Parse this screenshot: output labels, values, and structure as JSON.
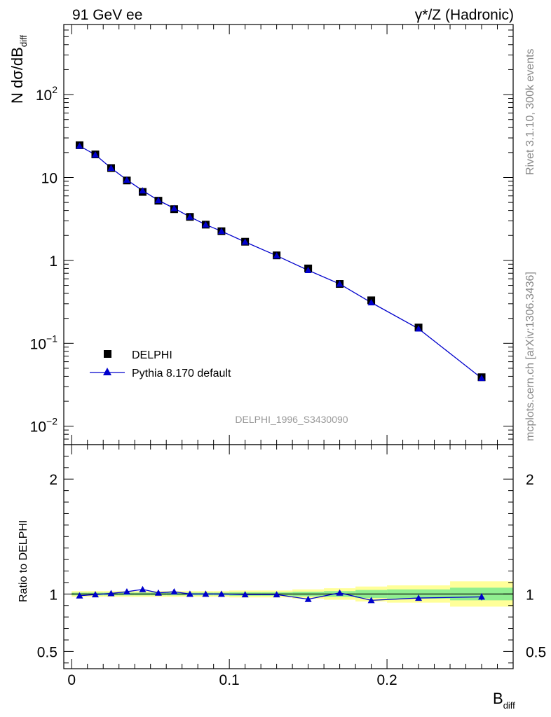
{
  "colors": {
    "data": "#000000",
    "mc": "#0000cc",
    "band_green": "#90ee90",
    "band_yellow": "#ffff99",
    "side_text": "#888888"
  },
  "header": {
    "left": "91 GeV ee",
    "right": "γ*/Z (Hadronic)"
  },
  "side_texts": {
    "rivet": "Rivet 3.1.10,  300k events",
    "mcplots": "mcplots.cern.ch [arXiv:1306.3436]"
  },
  "chart_data": [
    {
      "type": "scatter",
      "id": "main",
      "title": "",
      "xlabel": "B",
      "xlabel_sub": "diff",
      "ylabel_main": "N dσ/dB",
      "ylabel_sub": "diff",
      "yscale": "log",
      "ylim": [
        0.006,
        700
      ],
      "xlim": [
        -0.005,
        0.28
      ],
      "watermark": "DELPHI_1996_S3430090",
      "y_ticks": [
        {
          "v": 0.01,
          "base": "10",
          "exp": "−2"
        },
        {
          "v": 0.1,
          "base": "10",
          "exp": "−1"
        },
        {
          "v": 1,
          "base": "1",
          "exp": ""
        },
        {
          "v": 10,
          "base": "10",
          "exp": ""
        },
        {
          "v": 100,
          "base": "10",
          "exp": "2"
        }
      ],
      "legend": {
        "position": "bottom-left",
        "entries": [
          "DELPHI",
          "Pythia 8.170 default"
        ]
      },
      "series": [
        {
          "name": "DELPHI",
          "marker": "square",
          "x": [
            0.005,
            0.015,
            0.025,
            0.035,
            0.045,
            0.055,
            0.065,
            0.075,
            0.085,
            0.095,
            0.11,
            0.13,
            0.15,
            0.17,
            0.19,
            0.22,
            0.26
          ],
          "values": [
            24.5,
            19.0,
            13.0,
            9.2,
            6.7,
            5.25,
            4.15,
            3.35,
            2.7,
            2.25,
            1.68,
            1.15,
            0.8,
            0.52,
            0.33,
            0.155,
            0.039
          ]
        },
        {
          "name": "Pythia 8.170 default",
          "marker": "triangle",
          "x": [
            0.005,
            0.015,
            0.025,
            0.035,
            0.045,
            0.055,
            0.065,
            0.075,
            0.085,
            0.095,
            0.11,
            0.13,
            0.15,
            0.17,
            0.19,
            0.22,
            0.26
          ],
          "values": [
            24.0,
            18.8,
            13.0,
            9.35,
            6.95,
            5.3,
            4.25,
            3.35,
            2.7,
            2.25,
            1.67,
            1.14,
            0.76,
            0.52,
            0.31,
            0.15,
            0.038
          ]
        }
      ]
    },
    {
      "type": "line",
      "id": "ratio",
      "ylabel": "Ratio to DELPHI",
      "ylim": [
        0.35,
        2.3
      ],
      "xlim": [
        -0.005,
        0.28
      ],
      "x_ticks": [
        0,
        0.1,
        0.2
      ],
      "x_tick_labels": [
        "0",
        "0.1",
        "0.2"
      ],
      "y_ticks": [
        0.5,
        1,
        2
      ],
      "y_tick_labels": [
        "0.5",
        "1",
        "2"
      ],
      "bands": {
        "x_edges": [
          0.0,
          0.01,
          0.02,
          0.03,
          0.04,
          0.05,
          0.06,
          0.07,
          0.08,
          0.09,
          0.1,
          0.12,
          0.14,
          0.16,
          0.18,
          0.2,
          0.24,
          0.28
        ],
        "green": [
          0.012,
          0.012,
          0.012,
          0.012,
          0.012,
          0.012,
          0.012,
          0.012,
          0.012,
          0.012,
          0.015,
          0.015,
          0.02,
          0.025,
          0.035,
          0.04,
          0.055
        ],
        "yellow": [
          0.025,
          0.025,
          0.025,
          0.025,
          0.025,
          0.025,
          0.025,
          0.025,
          0.025,
          0.025,
          0.03,
          0.03,
          0.04,
          0.05,
          0.065,
          0.075,
          0.11
        ]
      },
      "series": [
        {
          "name": "Pythia 8.170 default",
          "x": [
            0.005,
            0.015,
            0.025,
            0.035,
            0.045,
            0.055,
            0.065,
            0.075,
            0.085,
            0.095,
            0.11,
            0.13,
            0.15,
            0.17,
            0.19,
            0.22,
            0.26
          ],
          "values": [
            0.985,
            0.995,
            1.005,
            1.02,
            1.04,
            1.01,
            1.02,
            1.0,
            1.0,
            1.0,
            0.995,
            0.995,
            0.955,
            1.01,
            0.945,
            0.965,
            0.975
          ],
          "errors": [
            0,
            0,
            0,
            0,
            0,
            0,
            0,
            0,
            0,
            0,
            0,
            0,
            0,
            0,
            0,
            0,
            0.03
          ]
        }
      ]
    }
  ]
}
